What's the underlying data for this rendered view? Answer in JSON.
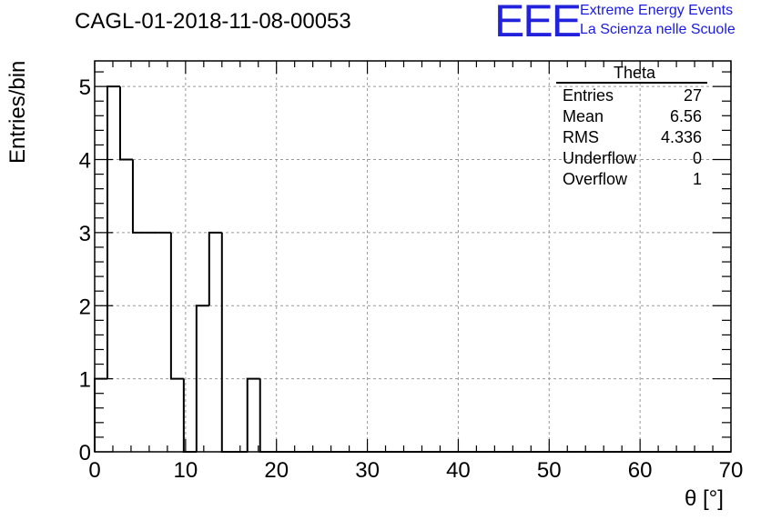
{
  "title": "CAGL-01-2018-11-08-00053",
  "logo": {
    "mark": "EEE",
    "line1": "Extreme Energy Events",
    "line2": "La Scienza nelle Scuole"
  },
  "colors": {
    "logo": "#1a1ae6",
    "histogram": "#000000",
    "grid": "#999999"
  },
  "stats": {
    "title": "Theta",
    "rows": [
      {
        "label": "Entries",
        "value": "27"
      },
      {
        "label": "Mean",
        "value": "6.56"
      },
      {
        "label": "RMS",
        "value": "4.336"
      },
      {
        "label": "Underflow",
        "value": "0"
      },
      {
        "label": "Overflow",
        "value": "1"
      }
    ]
  },
  "chart_data": {
    "type": "bar",
    "histogram": true,
    "title": "CAGL-01-2018-11-08-00053",
    "xlabel": "θ [°]",
    "ylabel": "Entries/bin",
    "xlim": [
      0,
      70
    ],
    "ylim": [
      0,
      5.35
    ],
    "bin_width": 1.4,
    "bin_edges_start": 0,
    "values": [
      1,
      5,
      4,
      3,
      3,
      3,
      1,
      0,
      2,
      3,
      0,
      0,
      1,
      0,
      0,
      0,
      0,
      0,
      0,
      0,
      0,
      0,
      0,
      0,
      0,
      0,
      0,
      0,
      0,
      0,
      0,
      0,
      0,
      0,
      0,
      0,
      0,
      0,
      0,
      0,
      0,
      0,
      0,
      0,
      0,
      0,
      0,
      0,
      0,
      0
    ],
    "x_ticks": [
      0,
      10,
      20,
      30,
      40,
      50,
      60,
      70
    ],
    "y_ticks": [
      0,
      1,
      2,
      3,
      4,
      5
    ],
    "grid": true,
    "legend": "top-right"
  }
}
